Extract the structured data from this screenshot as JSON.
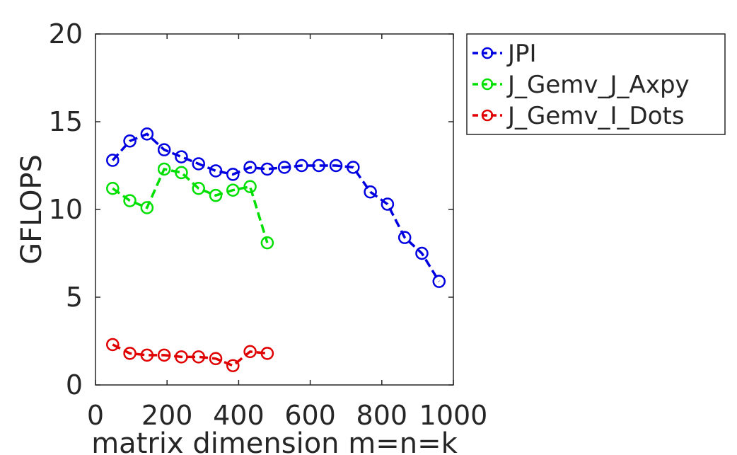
{
  "chart_data": {
    "type": "line",
    "title": "",
    "xlabel": "matrix dimension m=n=k",
    "ylabel": "GFLOPS",
    "xlim": [
      0,
      1000
    ],
    "ylim": [
      0,
      20
    ],
    "xticks": [
      "0",
      "200",
      "400",
      "600",
      "800",
      "1000"
    ],
    "yticks": [
      "0",
      "5",
      "10",
      "15",
      "20"
    ],
    "legend_position": "outside-top-right",
    "grid": false,
    "series": [
      {
        "name": "JPI",
        "color": "#0000e0",
        "x": [
          48,
          96,
          144,
          192,
          240,
          288,
          336,
          384,
          432,
          480,
          528,
          576,
          624,
          672,
          720,
          768,
          816,
          864,
          912,
          960
        ],
        "values": [
          12.8,
          13.9,
          14.3,
          13.4,
          13.0,
          12.6,
          12.2,
          12.0,
          12.4,
          12.3,
          12.4,
          12.5,
          12.5,
          12.5,
          12.4,
          11.0,
          10.3,
          8.4,
          7.5,
          5.9
        ]
      },
      {
        "name": "J_Gemv_J_Axpy",
        "color": "#00e000",
        "x": [
          48,
          96,
          144,
          192,
          240,
          288,
          336,
          384,
          432,
          480
        ],
        "values": [
          11.2,
          10.5,
          10.1,
          12.3,
          12.1,
          11.2,
          10.8,
          11.1,
          11.3,
          8.1
        ]
      },
      {
        "name": "J_Gemv_I_Dots",
        "color": "#e00000",
        "x": [
          48,
          96,
          144,
          192,
          240,
          288,
          336,
          384,
          432,
          480
        ],
        "values": [
          2.3,
          1.8,
          1.7,
          1.7,
          1.6,
          1.6,
          1.5,
          1.1,
          1.9,
          1.8
        ]
      }
    ]
  }
}
